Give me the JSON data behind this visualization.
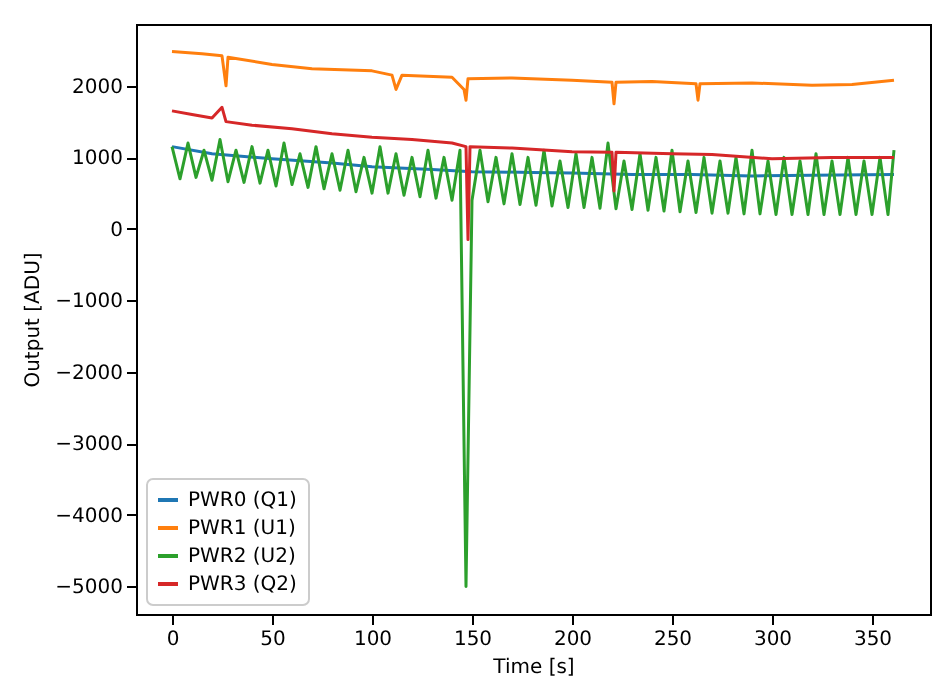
{
  "chart_data": {
    "type": "line",
    "xlabel": "Time [s]",
    "ylabel": "Output [ADU]",
    "xlim": [
      -18,
      379
    ],
    "ylim": [
      -5385,
      2865
    ],
    "xticks": [
      0,
      50,
      100,
      150,
      200,
      250,
      300,
      350
    ],
    "yticks": [
      -5000,
      -4000,
      -3000,
      -2000,
      -1000,
      0,
      1000,
      2000
    ],
    "grid": false,
    "legend": "bottom left",
    "series": [
      {
        "name": "PWR0 (Q1)",
        "color": "#1f77b4",
        "x": [
          0,
          20,
          50,
          80,
          100,
          130,
          150,
          180,
          200,
          230,
          260,
          290,
          320,
          361
        ],
        "values": [
          1150,
          1050,
          980,
          920,
          870,
          830,
          800,
          790,
          780,
          760,
          760,
          740,
          750,
          760
        ]
      },
      {
        "name": "PWR1 (U1)",
        "color": "#ff7f0e",
        "x": [
          0,
          15,
          25,
          27,
          28,
          50,
          70,
          100,
          110,
          112,
          115,
          140,
          146,
          147,
          148,
          170,
          200,
          220,
          221,
          222,
          240,
          262,
          263,
          264,
          290,
          320,
          340,
          361
        ],
        "values": [
          2480,
          2450,
          2420,
          2000,
          2400,
          2300,
          2240,
          2210,
          2150,
          1950,
          2150,
          2120,
          1950,
          1800,
          2100,
          2110,
          2080,
          2050,
          1750,
          2050,
          2060,
          2030,
          1800,
          2030,
          2040,
          2010,
          2020,
          2080
        ]
      },
      {
        "name": "PWR2 (U2)",
        "color": "#2ca02c",
        "x": [
          0,
          4,
          8,
          12,
          16,
          20,
          24,
          28,
          32,
          36,
          40,
          44,
          48,
          52,
          56,
          60,
          64,
          68,
          72,
          76,
          80,
          84,
          88,
          92,
          96,
          100,
          104,
          108,
          112,
          116,
          120,
          124,
          128,
          132,
          136,
          140,
          144,
          147,
          150,
          154,
          158,
          162,
          166,
          170,
          174,
          178,
          182,
          186,
          190,
          194,
          198,
          202,
          206,
          210,
          214,
          218,
          222,
          226,
          230,
          234,
          238,
          242,
          246,
          250,
          254,
          258,
          262,
          266,
          270,
          274,
          278,
          282,
          286,
          290,
          294,
          298,
          302,
          306,
          310,
          314,
          318,
          322,
          326,
          330,
          334,
          338,
          342,
          346,
          350,
          354,
          358,
          361
        ],
        "values": [
          1150,
          700,
          1200,
          720,
          1100,
          680,
          1250,
          660,
          1100,
          650,
          1150,
          640,
          1100,
          600,
          1200,
          620,
          1050,
          580,
          1150,
          560,
          1050,
          540,
          1100,
          520,
          1000,
          500,
          1150,
          500,
          1050,
          470,
          1000,
          450,
          1100,
          430,
          1000,
          400,
          1100,
          -5000,
          400,
          1100,
          380,
          1000,
          350,
          1050,
          340,
          1000,
          330,
          1100,
          320,
          950,
          300,
          1050,
          300,
          1000,
          290,
          1200,
          280,
          950,
          270,
          1050,
          260,
          1000,
          250,
          1100,
          240,
          950,
          230,
          1000,
          220,
          950,
          220,
          1000,
          210,
          1100,
          210,
          950,
          200,
          1000,
          200,
          950,
          200,
          1050,
          200,
          950,
          200,
          1000,
          200,
          950,
          200,
          1000,
          200,
          1100
        ]
      },
      {
        "name": "PWR3 (Q2)",
        "color": "#d62728",
        "x": [
          0,
          10,
          20,
          25,
          27,
          40,
          60,
          80,
          100,
          120,
          140,
          147,
          148,
          149,
          170,
          200,
          220,
          221,
          222,
          250,
          270,
          300,
          330,
          361
        ],
        "values": [
          1650,
          1600,
          1550,
          1700,
          1500,
          1450,
          1400,
          1330,
          1280,
          1250,
          1200,
          1150,
          -150,
          1150,
          1130,
          1080,
          1070,
          530,
          1070,
          1050,
          1040,
          980,
          1000,
          1000
        ]
      }
    ]
  }
}
